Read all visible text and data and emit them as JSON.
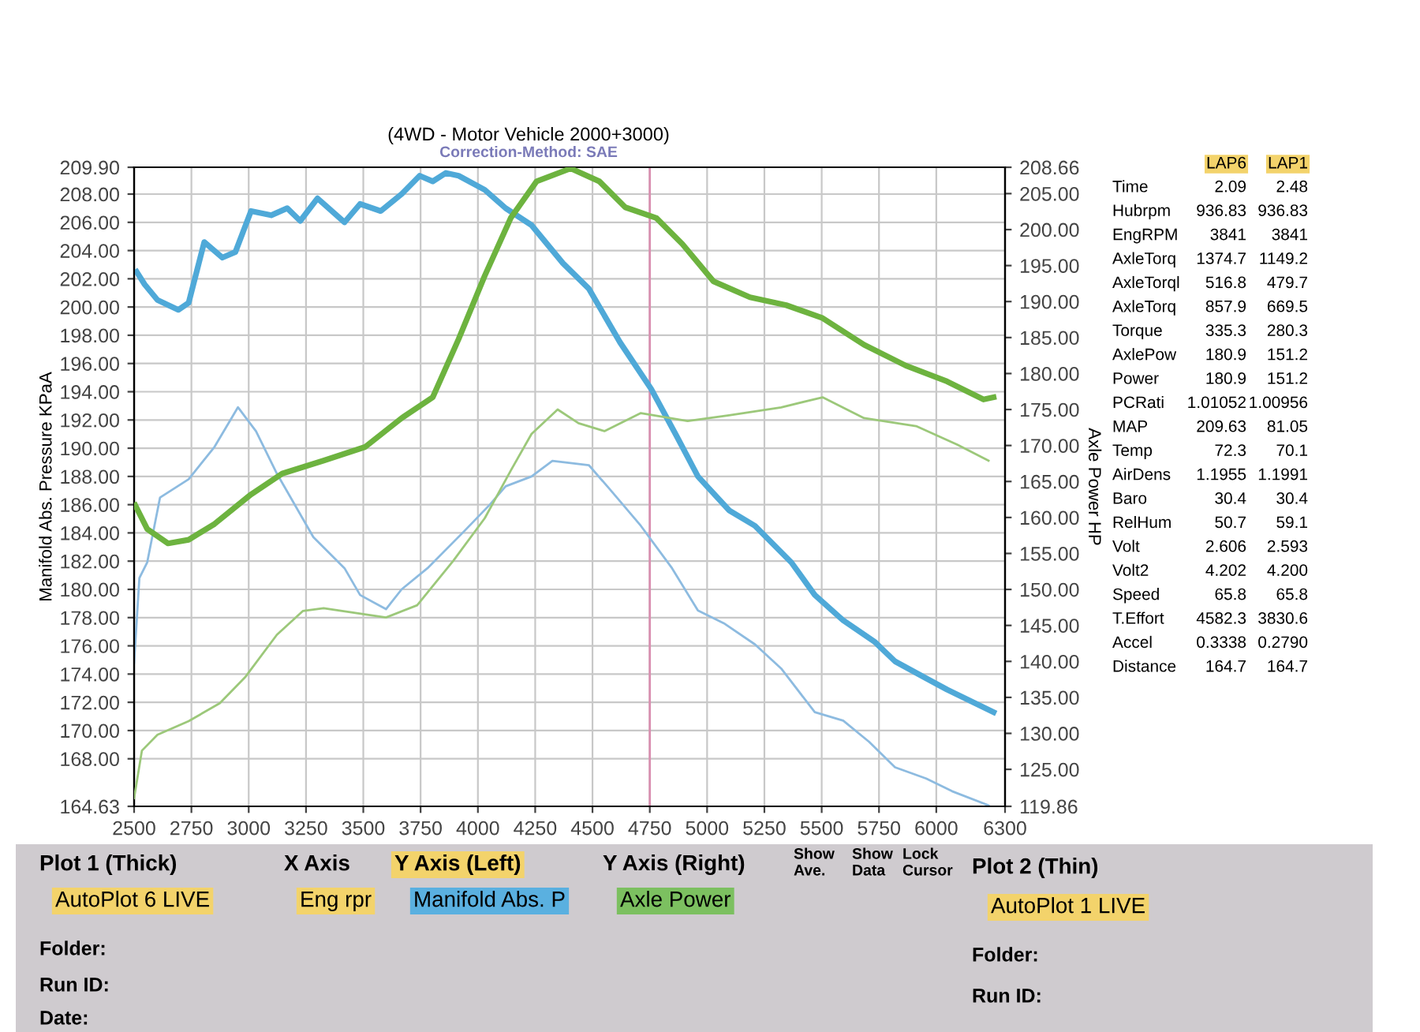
{
  "chart_data": [
    {
      "type": "line",
      "title": "(4WD - Motor Vehicle 2000+3000)",
      "subtitle": "Correction-Method: SAE",
      "ylabel": "Manifold Abs. Pressure KPaA",
      "y2label": "Axle Power HP",
      "xlim": [
        2500,
        6300
      ],
      "xticks": [
        2500,
        2750,
        3000,
        3250,
        3500,
        3750,
        4000,
        4250,
        4500,
        4750,
        5000,
        5250,
        5500,
        5750,
        6000,
        6300
      ],
      "ylim": [
        164.63,
        209.9
      ],
      "yticks": [
        {
          "value": 164.63,
          "label": "164.63"
        },
        {
          "value": 168,
          "label": "168.00"
        },
        {
          "value": 170,
          "label": "170.00"
        },
        {
          "value": 172,
          "label": "172.00"
        },
        {
          "value": 174,
          "label": "174.00"
        },
        {
          "value": 176,
          "label": "176.00"
        },
        {
          "value": 178,
          "label": "178.00"
        },
        {
          "value": 180,
          "label": "180.00"
        },
        {
          "value": 182,
          "label": "182.00"
        },
        {
          "value": 184,
          "label": "184.00"
        },
        {
          "value": 186,
          "label": "186.00"
        },
        {
          "value": 188,
          "label": "188.00"
        },
        {
          "value": 190,
          "label": "190.00"
        },
        {
          "value": 192,
          "label": "192.00"
        },
        {
          "value": 194,
          "label": "194.00"
        },
        {
          "value": 196,
          "label": "196.00"
        },
        {
          "value": 198,
          "label": "198.00"
        },
        {
          "value": 200,
          "label": "200.00"
        },
        {
          "value": 202,
          "label": "202.00"
        },
        {
          "value": 204,
          "label": "204.00"
        },
        {
          "value": 206,
          "label": "206.00"
        },
        {
          "value": 208,
          "label": "208.00"
        },
        {
          "value": 209.9,
          "label": "209.90"
        }
      ],
      "y2lim": [
        119.86,
        208.66
      ],
      "y2ticks": [
        {
          "value": 119.86,
          "label": "119.86"
        },
        {
          "value": 125,
          "label": "125.00"
        },
        {
          "value": 130,
          "label": "130.00"
        },
        {
          "value": 135,
          "label": "135.00"
        },
        {
          "value": 140,
          "label": "140.00"
        },
        {
          "value": 145,
          "label": "145.00"
        },
        {
          "value": 150,
          "label": "150.00"
        },
        {
          "value": 155,
          "label": "155.00"
        },
        {
          "value": 160,
          "label": "160.00"
        },
        {
          "value": 165,
          "label": "165.00"
        },
        {
          "value": 170,
          "label": "170.00"
        },
        {
          "value": 175,
          "label": "175.00"
        },
        {
          "value": 180,
          "label": "180.00"
        },
        {
          "value": 185,
          "label": "185.00"
        },
        {
          "value": 190,
          "label": "190.00"
        },
        {
          "value": 195,
          "label": "195.00"
        },
        {
          "value": 200,
          "label": "200.00"
        },
        {
          "value": 205,
          "label": "205.00"
        },
        {
          "value": 208.66,
          "label": "208.66"
        }
      ],
      "grid": true,
      "ref_lines": [
        {
          "axis": "x",
          "value": 4750,
          "color": "#d98fb0"
        }
      ],
      "series": [
        {
          "color": "#4fa9d8",
          "x": [
            2511,
            2546,
            2602,
            2693,
            2738,
            2806,
            2885,
            2942,
            3010,
            3098,
            3168,
            3225,
            3300,
            3418,
            3486,
            3576,
            3667,
            3746,
            3803,
            3860,
            3916,
            4030,
            4121,
            4234,
            4371,
            4484,
            4620,
            4756,
            4869,
            4960,
            5096,
            5209,
            5368,
            5470,
            5594,
            5730,
            5820,
            5956,
            6047,
            6250
          ],
          "values": [
            202.5,
            201.6,
            200.5,
            199.8,
            200.3,
            204.6,
            203.5,
            203.9,
            206.8,
            206.5,
            207.0,
            206.1,
            207.7,
            206.0,
            207.3,
            206.8,
            208.0,
            209.3,
            208.9,
            209.5,
            209.3,
            208.3,
            207.0,
            205.8,
            203.1,
            201.3,
            197.5,
            194.2,
            190.8,
            188.0,
            185.6,
            184.5,
            181.9,
            179.6,
            177.8,
            176.3,
            174.9,
            173.7,
            172.9,
            171.3
          ]
        },
        {
          "color": "#8dbbe0",
          "x": [
            2500,
            2523,
            2557,
            2613,
            2738,
            2851,
            2953,
            3032,
            3123,
            3282,
            3418,
            3486,
            3599,
            3667,
            3780,
            3939,
            4052,
            4121,
            4234,
            4325,
            4484,
            4575,
            4711,
            4847,
            4960,
            5073,
            5209,
            5323,
            5470,
            5594,
            5707,
            5820,
            5956,
            6069,
            6228
          ],
          "values": [
            174.8,
            180.8,
            181.9,
            186.5,
            187.8,
            190.1,
            192.9,
            191.2,
            188.2,
            183.7,
            181.5,
            179.6,
            178.6,
            180.0,
            181.5,
            184.1,
            186.0,
            187.3,
            188.0,
            189.1,
            188.8,
            187.1,
            184.5,
            181.5,
            178.5,
            177.6,
            176.1,
            174.4,
            171.3,
            170.7,
            169.2,
            167.4,
            166.6,
            165.7,
            164.7
          ]
        },
        {
          "color": "#6db33f",
          "axis": "y2",
          "x": [
            2505,
            2557,
            2648,
            2738,
            2851,
            3010,
            3146,
            3327,
            3508,
            3667,
            3803,
            3916,
            4030,
            4143,
            4256,
            4405,
            4530,
            4643,
            4779,
            4892,
            5028,
            5187,
            5345,
            5504,
            5685,
            5867,
            6047,
            6206,
            6250
          ],
          "values": [
            161.7,
            158.4,
            156.4,
            156.9,
            159.1,
            163.2,
            166.1,
            167.9,
            169.8,
            173.8,
            176.7,
            184.8,
            193.6,
            201.6,
            206.7,
            208.5,
            206.7,
            203.1,
            201.6,
            198.0,
            192.8,
            190.6,
            189.5,
            187.7,
            184.0,
            181.1,
            178.9,
            176.4,
            176.7
          ]
        },
        {
          "color": "#9cc87a",
          "axis": "y2",
          "x": [
            2500,
            2534,
            2602,
            2738,
            2874,
            2987,
            3123,
            3236,
            3327,
            3599,
            3735,
            3893,
            4030,
            4143,
            4234,
            4348,
            4439,
            4552,
            4711,
            4915,
            5096,
            5323,
            5504,
            5685,
            5912,
            6093,
            6228
          ],
          "values": [
            121.0,
            127.6,
            129.8,
            131.7,
            134.2,
            137.9,
            143.7,
            147.0,
            147.4,
            146.1,
            147.8,
            154.0,
            159.9,
            166.5,
            171.6,
            175.0,
            173.1,
            172.0,
            174.5,
            173.4,
            174.2,
            175.3,
            176.7,
            173.8,
            172.7,
            170.1,
            167.9
          ]
        }
      ]
    },
    {
      "type": "other",
      "categories": [
        "Time",
        "Hubrpm",
        "EngRPM",
        "AxleTorq",
        "AxleTorql",
        "AxleTorq",
        "Torque",
        "AxlePow",
        "Power",
        "PCRati",
        "MAP",
        "Temp",
        "AirDens",
        "Baro",
        "RelHum",
        "Volt",
        "Volt2",
        "Speed",
        "T.Effort",
        "Accel",
        "Distance"
      ],
      "series": [
        {
          "name": "LAP6",
          "values": [
            2.09,
            936.83,
            3841,
            1374.7,
            516.8,
            857.9,
            335.3,
            180.9,
            180.9,
            1.01052,
            209.63,
            72.3,
            1.1955,
            30.4,
            50.7,
            2.606,
            4.202,
            65.8,
            4582.3,
            0.3338,
            164.7
          ],
          "value_labels": [
            "2.09",
            "936.83",
            "3841",
            "1374.7",
            "516.8",
            "857.9",
            "335.3",
            "180.9",
            "180.9",
            "1.01052",
            "209.63",
            "72.3",
            "1.1955",
            "30.4",
            "50.7",
            "2.606",
            "4.202",
            "65.8",
            "4582.3",
            "0.3338",
            "164.7"
          ]
        },
        {
          "name": "LAP1",
          "values": [
            2.48,
            936.83,
            3841,
            1149.2,
            479.7,
            669.5,
            280.3,
            151.2,
            151.2,
            1.00956,
            81.05,
            70.1,
            1.1991,
            30.4,
            59.1,
            2.593,
            4.2,
            65.8,
            3830.6,
            0.279,
            164.7
          ],
          "value_labels": [
            "2.48",
            "936.83",
            "3841",
            "1149.2",
            "479.7",
            "669.5",
            "280.3",
            "151.2",
            "151.2",
            "1.00956",
            "81.05",
            "70.1",
            "1.1991",
            "30.4",
            "59.1",
            "2.593",
            "4.200",
            "65.8",
            "3830.6",
            "0.2790",
            "164.7"
          ]
        }
      ]
    },
    {
      "type": "other",
      "annotations": [
        "Plot 1 (Thick)",
        "AutoPlot 6 LIVE",
        "X Axis",
        "Eng rpr",
        "Y Axis (Left)",
        "Manifold Abs. P",
        "Y Axis (Right)",
        "Axle Power",
        "Show Ave.",
        "Show Data",
        "Lock Cursor",
        "Plot 2 (Thin)",
        "AutoPlot 1 LIVE",
        "Folder:",
        "Run ID:",
        "Date:",
        "Folder:",
        "Run ID:"
      ]
    }
  ]
}
